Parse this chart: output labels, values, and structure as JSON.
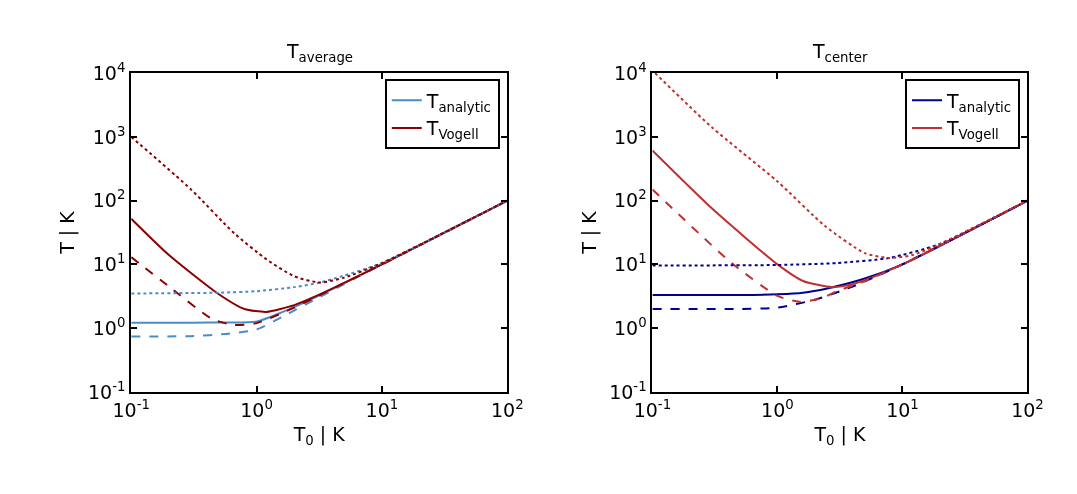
{
  "chart_data": [
    {
      "type": "line",
      "title": "T$_{average}$",
      "xlabel": "T$_{0}$ | K",
      "ylabel": "T | K",
      "log": "xy",
      "legend": "top right",
      "marker": "none",
      "xlim": [
        0.1,
        100
      ],
      "ylim": [
        0.1,
        10000
      ],
      "xticks": [
        {
          "value": 0.1,
          "label": "10$^{-1}$"
        },
        {
          "value": 1,
          "label": "10$^{0}$"
        },
        {
          "value": 10,
          "label": "10$^{1}$"
        },
        {
          "value": 100,
          "label": "10$^{2}$"
        }
      ],
      "yticks": [
        {
          "value": 0.1,
          "label": "10$^{-1}$"
        },
        {
          "value": 1,
          "label": "10$^{0}$"
        },
        {
          "value": 10,
          "label": "10$^{1}$"
        },
        {
          "value": 100,
          "label": "10$^{2}$"
        },
        {
          "value": 1000,
          "label": "10$^{3}$"
        },
        {
          "value": 10000,
          "label": "10$^{4}$"
        }
      ],
      "series": [
        {
          "name": "T$_{analytic}$",
          "color": "#4a8cc8",
          "line_style": "solid",
          "x": [
            0.1,
            0.3,
            0.6,
            1,
            1.6,
            3,
            10,
            100
          ],
          "values": [
            1.22,
            1.22,
            1.23,
            1.27,
            1.78,
            3.1,
            10,
            100
          ]
        },
        {
          "name": "T$_{Vogell}$",
          "color": "#8b0000",
          "line_style": "solid",
          "x": [
            0.1,
            0.2,
            0.49,
            0.8,
            1.2,
            2,
            3,
            10,
            100
          ],
          "values": [
            52,
            14,
            3.5,
            2.0,
            1.8,
            2.3,
            3.2,
            10,
            100
          ]
        },
        {
          "color": "#4a8cc8",
          "line_style": "dashed",
          "x": [
            0.1,
            0.3,
            0.6,
            1,
            1.6,
            3,
            10,
            100
          ],
          "values": [
            0.74,
            0.75,
            0.82,
            0.95,
            1.5,
            2.9,
            10,
            100
          ]
        },
        {
          "color": "#8b0000",
          "line_style": "dashed",
          "x": [
            0.1,
            0.2,
            0.44,
            0.66,
            1,
            2,
            3,
            10,
            100
          ],
          "values": [
            13,
            4.5,
            1.4,
            1.12,
            1.2,
            2.1,
            3.1,
            10,
            100
          ]
        },
        {
          "color": "#4a8cc8",
          "line_style": "dotted",
          "x": [
            0.1,
            0.5,
            1,
            2,
            3.2,
            10,
            100
          ],
          "values": [
            3.5,
            3.6,
            3.8,
            4.4,
            5.2,
            10.5,
            100
          ]
        },
        {
          "color": "#8b0000",
          "line_style": "dotted",
          "x": [
            0.1,
            0.3,
            0.66,
            1.2,
            2,
            3.2,
            5,
            10,
            100
          ],
          "values": [
            1000,
            150,
            31,
            12,
            6.5,
            5.2,
            6.2,
            10.5,
            100
          ]
        }
      ]
    },
    {
      "type": "line",
      "title": "T$_{center}$",
      "xlabel": "T$_{0}$ | K",
      "ylabel": "T | K",
      "log": "xy",
      "legend": "top right",
      "marker": "none",
      "xlim": [
        0.1,
        100
      ],
      "ylim": [
        0.1,
        10000
      ],
      "xticks": [
        {
          "value": 0.1,
          "label": "10$^{-1}$"
        },
        {
          "value": 1,
          "label": "10$^{0}$"
        },
        {
          "value": 10,
          "label": "10$^{1}$"
        },
        {
          "value": 100,
          "label": "10$^{2}$"
        }
      ],
      "yticks": [
        {
          "value": 0.1,
          "label": "10$^{-1}$"
        },
        {
          "value": 1,
          "label": "10$^{0}$"
        },
        {
          "value": 10,
          "label": "10$^{1}$"
        },
        {
          "value": 100,
          "label": "10$^{2}$"
        },
        {
          "value": 1000,
          "label": "10$^{3}$"
        },
        {
          "value": 10000,
          "label": "10$^{4}$"
        }
      ],
      "series": [
        {
          "name": "T$_{analytic}$",
          "color": "#000090",
          "line_style": "solid",
          "x": [
            0.1,
            0.5,
            1,
            1.6,
            2.5,
            5,
            10,
            100
          ],
          "values": [
            3.3,
            3.3,
            3.4,
            3.6,
            4.2,
            6,
            10,
            100
          ]
        },
        {
          "name": "T$_{Vogell}$",
          "color": "#c03030",
          "line_style": "solid",
          "x": [
            0.1,
            0.3,
            1,
            1.6,
            2.75,
            4,
            6,
            10,
            100
          ],
          "values": [
            610,
            75,
            10,
            5.5,
            4.4,
            4.9,
            6.5,
            10,
            100
          ]
        },
        {
          "color": "#000090",
          "line_style": "dashed",
          "x": [
            0.1,
            0.5,
            1,
            2,
            4,
            10,
            100
          ],
          "values": [
            2.0,
            2.0,
            2.1,
            2.8,
            4.5,
            10,
            100
          ]
        },
        {
          "color": "#c03030",
          "line_style": "dashed",
          "x": [
            0.1,
            0.43,
            1,
            1.5,
            2.2,
            3,
            5,
            10,
            100
          ],
          "values": [
            150,
            10.5,
            3.2,
            2.6,
            2.9,
            3.8,
            5.5,
            10,
            100
          ]
        },
        {
          "color": "#000090",
          "line_style": "dotted",
          "x": [
            0.1,
            1,
            3,
            7.8,
            20,
            100
          ],
          "values": [
            9.6,
            9.8,
            10.5,
            12.6,
            21,
            100
          ]
        },
        {
          "color": "#c03030",
          "line_style": "dotted",
          "x": [
            0.105,
            0.3,
            1,
            2.4,
            5,
            7.8,
            12,
            20,
            100
          ],
          "values": [
            10000,
            1400,
            200,
            40,
            15,
            12.6,
            14,
            21,
            100
          ]
        }
      ]
    }
  ]
}
